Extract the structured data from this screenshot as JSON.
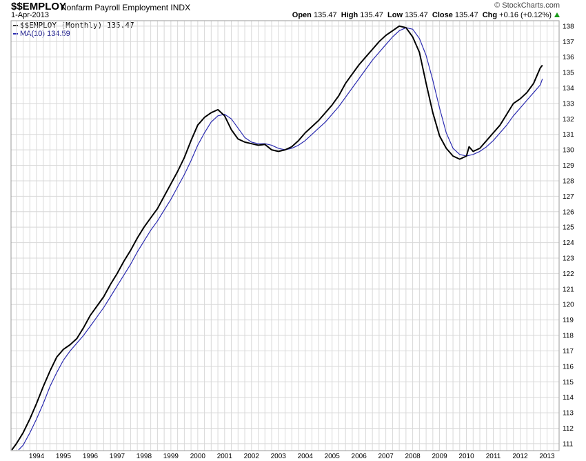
{
  "header": {
    "symbol": "$$EMPLOY",
    "description": "Nonfarm Payroll Employment",
    "exchange": "INDX",
    "date": "1-Apr-2013",
    "watermark": "© StockCharts.com",
    "quote": {
      "open_label": "Open",
      "open": "135.47",
      "high_label": "High",
      "high": "135.47",
      "low_label": "Low",
      "low": "135.47",
      "close_label": "Close",
      "close": "135.47",
      "chg_label": "Chg",
      "chg": "+0.16 (+0.12%)"
    }
  },
  "legend": {
    "series1": "$$EMPLOY (Monthly) 135.47",
    "series2": "MA(10) 134.59"
  },
  "colors": {
    "price": "#000000",
    "ma": "#2b2bb0",
    "grid": "#d8d8d8",
    "up": "#1a9a1a"
  },
  "chart_data": {
    "type": "line",
    "title": "$$EMPLOY Nonfarm Payroll Employment INDX",
    "x_ticks": [
      "1994",
      "1995",
      "1996",
      "1997",
      "1998",
      "1999",
      "2000",
      "2001",
      "2002",
      "2003",
      "2004",
      "2005",
      "2006",
      "2007",
      "2008",
      "2009",
      "2010",
      "2011",
      "2012",
      "2013"
    ],
    "y_ticks": [
      111,
      112,
      113,
      114,
      115,
      116,
      117,
      118,
      119,
      120,
      121,
      122,
      123,
      124,
      125,
      126,
      127,
      128,
      129,
      130,
      131,
      132,
      133,
      134,
      135,
      136,
      137,
      138
    ],
    "xlim": [
      1993.55,
      2013.95
    ],
    "ylim": [
      110.55,
      138.35
    ],
    "grid": true,
    "legend_position": "top-left",
    "series": [
      {
        "name": "$$EMPLOY (Monthly)",
        "color": "#000000",
        "points": [
          [
            1993.58,
            110.6
          ],
          [
            1993.75,
            111.0
          ],
          [
            1994.0,
            111.7
          ],
          [
            1994.25,
            112.6
          ],
          [
            1994.5,
            113.6
          ],
          [
            1994.75,
            114.7
          ],
          [
            1995.0,
            115.7
          ],
          [
            1995.25,
            116.6
          ],
          [
            1995.5,
            117.1
          ],
          [
            1995.75,
            117.4
          ],
          [
            1996.0,
            117.8
          ],
          [
            1996.25,
            118.5
          ],
          [
            1996.5,
            119.3
          ],
          [
            1996.75,
            119.9
          ],
          [
            1997.0,
            120.5
          ],
          [
            1997.25,
            121.3
          ],
          [
            1997.5,
            122.0
          ],
          [
            1997.75,
            122.8
          ],
          [
            1998.0,
            123.5
          ],
          [
            1998.25,
            124.3
          ],
          [
            1998.5,
            125.0
          ],
          [
            1998.75,
            125.6
          ],
          [
            1999.0,
            126.2
          ],
          [
            1999.25,
            127.0
          ],
          [
            1999.5,
            127.8
          ],
          [
            1999.75,
            128.6
          ],
          [
            2000.0,
            129.5
          ],
          [
            2000.25,
            130.6
          ],
          [
            2000.5,
            131.6
          ],
          [
            2000.75,
            132.1
          ],
          [
            2001.0,
            132.4
          ],
          [
            2001.25,
            132.6
          ],
          [
            2001.5,
            132.2
          ],
          [
            2001.75,
            131.3
          ],
          [
            2002.0,
            130.7
          ],
          [
            2002.25,
            130.5
          ],
          [
            2002.5,
            130.4
          ],
          [
            2002.75,
            130.3
          ],
          [
            2003.0,
            130.35
          ],
          [
            2003.25,
            130.0
          ],
          [
            2003.5,
            129.9
          ],
          [
            2003.75,
            130.0
          ],
          [
            2004.0,
            130.2
          ],
          [
            2004.25,
            130.6
          ],
          [
            2004.5,
            131.1
          ],
          [
            2004.75,
            131.5
          ],
          [
            2005.0,
            131.9
          ],
          [
            2005.25,
            132.4
          ],
          [
            2005.5,
            132.9
          ],
          [
            2005.75,
            133.5
          ],
          [
            2006.0,
            134.3
          ],
          [
            2006.25,
            134.9
          ],
          [
            2006.5,
            135.5
          ],
          [
            2006.75,
            136.0
          ],
          [
            2007.0,
            136.5
          ],
          [
            2007.25,
            137.0
          ],
          [
            2007.5,
            137.4
          ],
          [
            2007.75,
            137.7
          ],
          [
            2008.0,
            138.0
          ],
          [
            2008.25,
            137.9
          ],
          [
            2008.5,
            137.3
          ],
          [
            2008.75,
            136.3
          ],
          [
            2009.0,
            134.3
          ],
          [
            2009.25,
            132.4
          ],
          [
            2009.5,
            130.9
          ],
          [
            2009.75,
            130.1
          ],
          [
            2010.0,
            129.6
          ],
          [
            2010.25,
            129.4
          ],
          [
            2010.5,
            129.6
          ],
          [
            2010.6,
            130.2
          ],
          [
            2010.75,
            129.9
          ],
          [
            2011.0,
            130.1
          ],
          [
            2011.25,
            130.6
          ],
          [
            2011.5,
            131.1
          ],
          [
            2011.75,
            131.6
          ],
          [
            2012.0,
            132.3
          ],
          [
            2012.25,
            133.0
          ],
          [
            2012.5,
            133.3
          ],
          [
            2012.75,
            133.7
          ],
          [
            2013.0,
            134.3
          ],
          [
            2013.15,
            134.9
          ],
          [
            2013.25,
            135.3
          ],
          [
            2013.33,
            135.47
          ]
        ]
      },
      {
        "name": "MA(10)",
        "color": "#2b2bb0",
        "points": [
          [
            1993.83,
            110.6
          ],
          [
            1994.0,
            110.9
          ],
          [
            1994.25,
            111.7
          ],
          [
            1994.5,
            112.6
          ],
          [
            1994.75,
            113.6
          ],
          [
            1995.0,
            114.7
          ],
          [
            1995.25,
            115.6
          ],
          [
            1995.5,
            116.4
          ],
          [
            1995.75,
            117.0
          ],
          [
            1996.0,
            117.5
          ],
          [
            1996.25,
            118.0
          ],
          [
            1996.5,
            118.6
          ],
          [
            1996.75,
            119.2
          ],
          [
            1997.0,
            119.8
          ],
          [
            1997.25,
            120.5
          ],
          [
            1997.5,
            121.2
          ],
          [
            1997.75,
            121.9
          ],
          [
            1998.0,
            122.6
          ],
          [
            1998.25,
            123.4
          ],
          [
            1998.5,
            124.1
          ],
          [
            1998.75,
            124.8
          ],
          [
            1999.0,
            125.4
          ],
          [
            1999.25,
            126.1
          ],
          [
            1999.5,
            126.8
          ],
          [
            1999.75,
            127.6
          ],
          [
            2000.0,
            128.4
          ],
          [
            2000.25,
            129.3
          ],
          [
            2000.5,
            130.3
          ],
          [
            2000.75,
            131.1
          ],
          [
            2001.0,
            131.8
          ],
          [
            2001.25,
            132.2
          ],
          [
            2001.5,
            132.3
          ],
          [
            2001.75,
            132.0
          ],
          [
            2002.0,
            131.4
          ],
          [
            2002.25,
            130.8
          ],
          [
            2002.5,
            130.5
          ],
          [
            2002.75,
            130.4
          ],
          [
            2003.0,
            130.4
          ],
          [
            2003.25,
            130.3
          ],
          [
            2003.5,
            130.1
          ],
          [
            2003.75,
            130.0
          ],
          [
            2004.0,
            130.1
          ],
          [
            2004.25,
            130.3
          ],
          [
            2004.5,
            130.6
          ],
          [
            2004.75,
            131.0
          ],
          [
            2005.0,
            131.4
          ],
          [
            2005.25,
            131.8
          ],
          [
            2005.5,
            132.3
          ],
          [
            2005.75,
            132.8
          ],
          [
            2006.0,
            133.4
          ],
          [
            2006.25,
            134.0
          ],
          [
            2006.5,
            134.6
          ],
          [
            2006.75,
            135.2
          ],
          [
            2007.0,
            135.8
          ],
          [
            2007.25,
            136.3
          ],
          [
            2007.5,
            136.8
          ],
          [
            2007.75,
            137.3
          ],
          [
            2008.0,
            137.7
          ],
          [
            2008.25,
            137.9
          ],
          [
            2008.5,
            137.8
          ],
          [
            2008.75,
            137.2
          ],
          [
            2009.0,
            136.1
          ],
          [
            2009.25,
            134.5
          ],
          [
            2009.5,
            132.7
          ],
          [
            2009.75,
            131.1
          ],
          [
            2010.0,
            130.1
          ],
          [
            2010.25,
            129.7
          ],
          [
            2010.5,
            129.6
          ],
          [
            2010.75,
            129.7
          ],
          [
            2011.0,
            129.9
          ],
          [
            2011.25,
            130.2
          ],
          [
            2011.5,
            130.6
          ],
          [
            2011.75,
            131.1
          ],
          [
            2012.0,
            131.6
          ],
          [
            2012.25,
            132.2
          ],
          [
            2012.5,
            132.7
          ],
          [
            2012.75,
            133.2
          ],
          [
            2013.0,
            133.7
          ],
          [
            2013.25,
            134.2
          ],
          [
            2013.33,
            134.59
          ]
        ]
      }
    ]
  }
}
